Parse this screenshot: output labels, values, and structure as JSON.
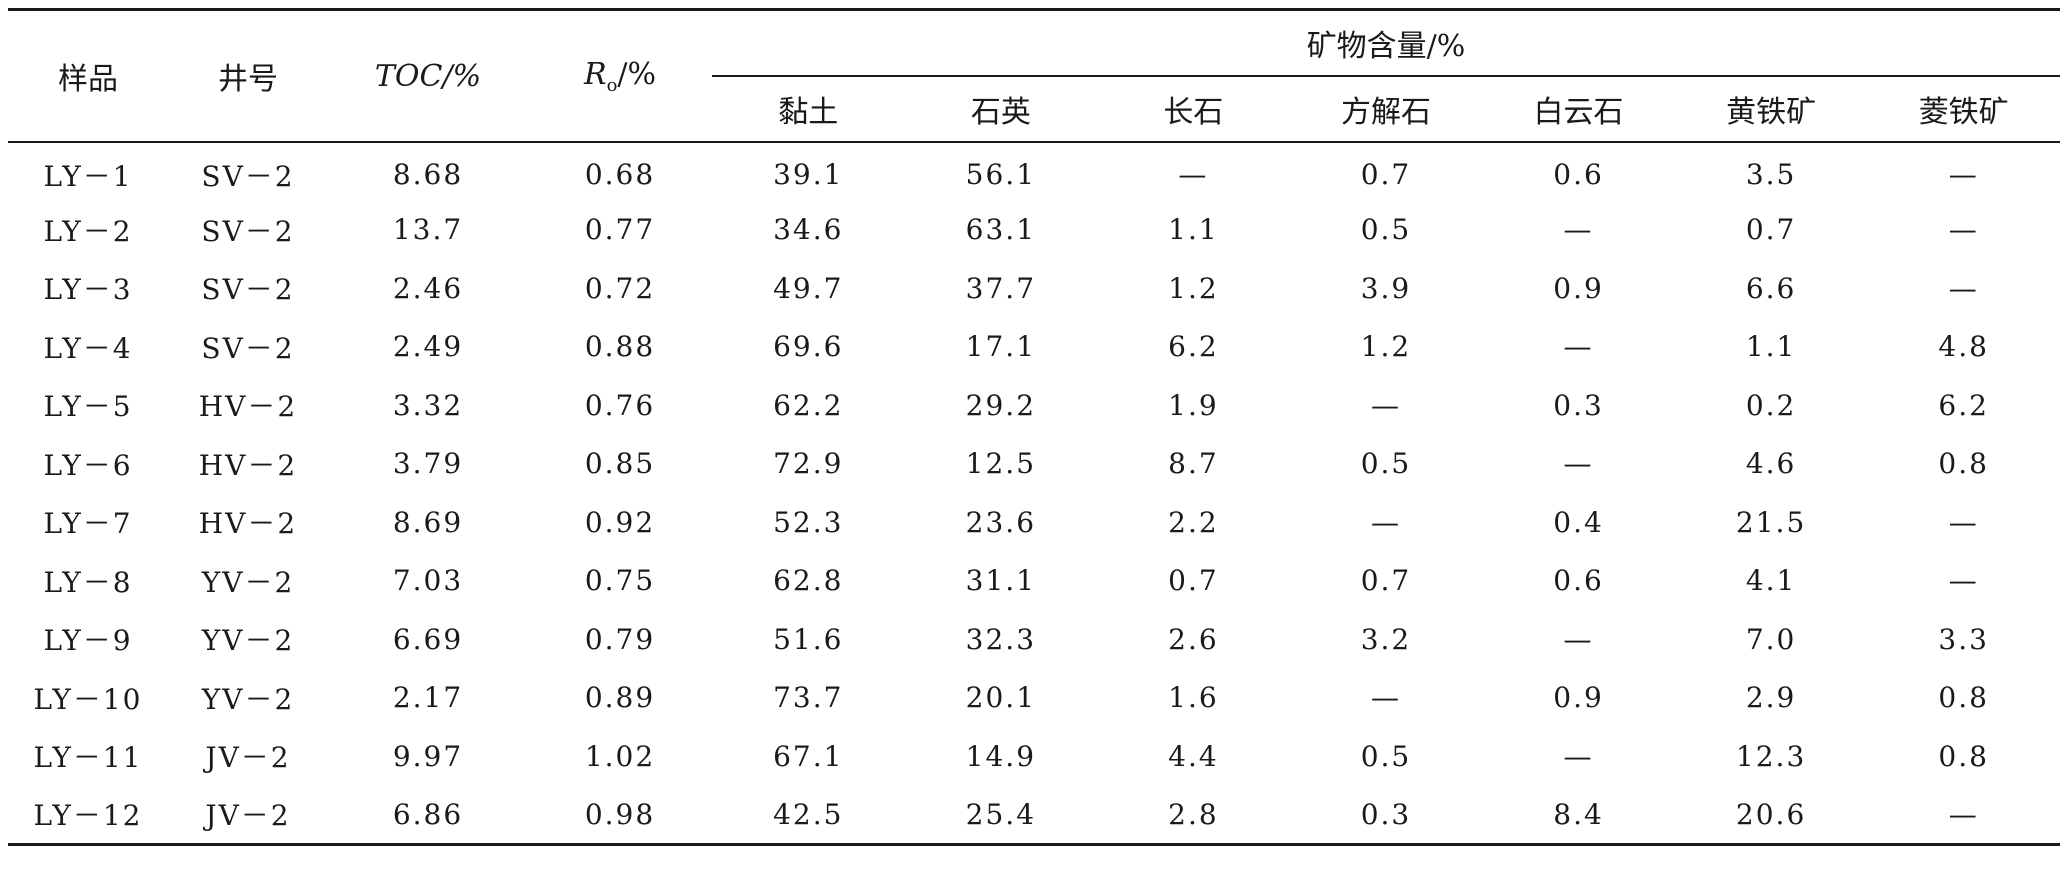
{
  "table": {
    "headers": {
      "sample": "样品",
      "well": "井号",
      "toc": "TOC/%",
      "ro_main": "R",
      "ro_sub": "o",
      "ro_unit": "/%",
      "mineral_group": "矿物含量/%",
      "minerals": [
        "黏土",
        "石英",
        "长石",
        "方解石",
        "白云石",
        "黄铁矿",
        "菱铁矿"
      ]
    },
    "rows": [
      [
        "LY－1",
        "SV－2",
        "8.68",
        "0.68",
        "39.1",
        "56.1",
        "—",
        "0.7",
        "0.6",
        "3.5",
        "—"
      ],
      [
        "LY－2",
        "SV－2",
        "13.7",
        "0.77",
        "34.6",
        "63.1",
        "1.1",
        "0.5",
        "—",
        "0.7",
        "—"
      ],
      [
        "LY－3",
        "SV－2",
        "2.46",
        "0.72",
        "49.7",
        "37.7",
        "1.2",
        "3.9",
        "0.9",
        "6.6",
        "—"
      ],
      [
        "LY－4",
        "SV－2",
        "2.49",
        "0.88",
        "69.6",
        "17.1",
        "6.2",
        "1.2",
        "—",
        "1.1",
        "4.8"
      ],
      [
        "LY－5",
        "HV－2",
        "3.32",
        "0.76",
        "62.2",
        "29.2",
        "1.9",
        "—",
        "0.3",
        "0.2",
        "6.2"
      ],
      [
        "LY－6",
        "HV－2",
        "3.79",
        "0.85",
        "72.9",
        "12.5",
        "8.7",
        "0.5",
        "—",
        "4.6",
        "0.8"
      ],
      [
        "LY－7",
        "HV－2",
        "8.69",
        "0.92",
        "52.3",
        "23.6",
        "2.2",
        "—",
        "0.4",
        "21.5",
        "—"
      ],
      [
        "LY－8",
        "YV－2",
        "7.03",
        "0.75",
        "62.8",
        "31.1",
        "0.7",
        "0.7",
        "0.6",
        "4.1",
        "—"
      ],
      [
        "LY－9",
        "YV－2",
        "6.69",
        "0.79",
        "51.6",
        "32.3",
        "2.6",
        "3.2",
        "—",
        "7.0",
        "3.3"
      ],
      [
        "LY－10",
        "YV－2",
        "2.17",
        "0.89",
        "73.7",
        "20.1",
        "1.6",
        "—",
        "0.9",
        "2.9",
        "0.8"
      ],
      [
        "LY－11",
        "JV－2",
        "9.97",
        "1.02",
        "67.1",
        "14.9",
        "4.4",
        "0.5",
        "—",
        "12.3",
        "0.8"
      ],
      [
        "LY－12",
        "JV－2",
        "6.86",
        "0.98",
        "42.5",
        "25.4",
        "2.8",
        "0.3",
        "8.4",
        "20.6",
        "—"
      ]
    ]
  }
}
